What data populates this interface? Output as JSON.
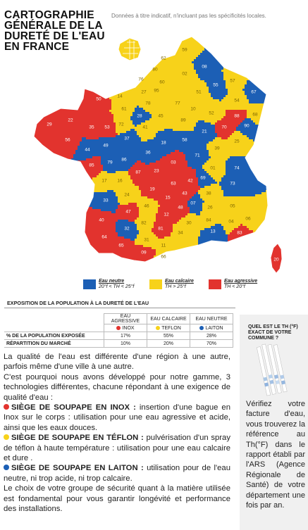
{
  "header": {
    "title_lines": [
      "CARTOGRAPHIE",
      "GÉNÉRALE DE LA",
      "DURETÉ DE L'EAU",
      "EN FRANCE"
    ],
    "note": "Données à titre indicatif, n'incluant pas les spécificités locales."
  },
  "colors": {
    "red": "#e2332e",
    "yellow": "#f7d21a",
    "blue": "#1c5fb5"
  },
  "map": {
    "departments": [
      {
        "n": "62",
        "c": "yellow"
      },
      {
        "n": "59",
        "c": "yellow"
      },
      {
        "n": "80",
        "c": "yellow"
      },
      {
        "n": "02",
        "c": "yellow"
      },
      {
        "n": "08",
        "c": "blue"
      },
      {
        "n": "76",
        "c": "yellow"
      },
      {
        "n": "60",
        "c": "yellow"
      },
      {
        "n": "55",
        "c": "blue"
      },
      {
        "n": "57",
        "c": "yellow"
      },
      {
        "n": "67",
        "c": "blue"
      },
      {
        "n": "14",
        "c": "yellow"
      },
      {
        "n": "27",
        "c": "yellow"
      },
      {
        "n": "95",
        "c": "yellow"
      },
      {
        "n": "51",
        "c": "yellow"
      },
      {
        "n": "54",
        "c": "yellow"
      },
      {
        "n": "50",
        "c": "red"
      },
      {
        "n": "61",
        "c": "yellow"
      },
      {
        "n": "78",
        "c": "yellow"
      },
      {
        "n": "77",
        "c": "yellow"
      },
      {
        "n": "10",
        "c": "yellow"
      },
      {
        "n": "52",
        "c": "yellow"
      },
      {
        "n": "88",
        "c": "red"
      },
      {
        "n": "68",
        "c": "yellow"
      },
      {
        "n": "29",
        "c": "red"
      },
      {
        "n": "22",
        "c": "red"
      },
      {
        "n": "35",
        "c": "red"
      },
      {
        "n": "53",
        "c": "red"
      },
      {
        "n": "72",
        "c": "yellow"
      },
      {
        "n": "28",
        "c": "blue"
      },
      {
        "n": "45",
        "c": "yellow"
      },
      {
        "n": "89",
        "c": "yellow"
      },
      {
        "n": "21",
        "c": "blue"
      },
      {
        "n": "70",
        "c": "red"
      },
      {
        "n": "90",
        "c": "blue"
      },
      {
        "n": "56",
        "c": "red"
      },
      {
        "n": "44",
        "c": "blue"
      },
      {
        "n": "49",
        "c": "blue"
      },
      {
        "n": "37",
        "c": "blue"
      },
      {
        "n": "41",
        "c": "yellow"
      },
      {
        "n": "18",
        "c": "blue"
      },
      {
        "n": "58",
        "c": "blue"
      },
      {
        "n": "71",
        "c": "blue"
      },
      {
        "n": "39",
        "c": "yellow"
      },
      {
        "n": "25",
        "c": "yellow"
      },
      {
        "n": "85",
        "c": "red"
      },
      {
        "n": "79",
        "c": "blue"
      },
      {
        "n": "86",
        "c": "blue"
      },
      {
        "n": "36",
        "c": "blue"
      },
      {
        "n": "03",
        "c": "red"
      },
      {
        "n": "01",
        "c": "yellow"
      },
      {
        "n": "74",
        "c": "blue"
      },
      {
        "n": "17",
        "c": "yellow"
      },
      {
        "n": "16",
        "c": "yellow"
      },
      {
        "n": "87",
        "c": "red"
      },
      {
        "n": "23",
        "c": "red"
      },
      {
        "n": "63",
        "c": "red"
      },
      {
        "n": "42",
        "c": "red"
      },
      {
        "n": "69",
        "c": "blue"
      },
      {
        "n": "73",
        "c": "blue"
      },
      {
        "n": "24",
        "c": "yellow"
      },
      {
        "n": "19",
        "c": "red"
      },
      {
        "n": "15",
        "c": "red"
      },
      {
        "n": "43",
        "c": "red"
      },
      {
        "n": "38",
        "c": "yellow"
      },
      {
        "n": "33",
        "c": "blue"
      },
      {
        "n": "46",
        "c": "yellow"
      },
      {
        "n": "12",
        "c": "red"
      },
      {
        "n": "48",
        "c": "red"
      },
      {
        "n": "07",
        "c": "blue"
      },
      {
        "n": "26",
        "c": "yellow"
      },
      {
        "n": "05",
        "c": "yellow"
      },
      {
        "n": "40",
        "c": "red"
      },
      {
        "n": "47",
        "c": "red"
      },
      {
        "n": "82",
        "c": "yellow"
      },
      {
        "n": "81",
        "c": "red"
      },
      {
        "n": "30",
        "c": "yellow"
      },
      {
        "n": "84",
        "c": "yellow"
      },
      {
        "n": "04",
        "c": "yellow"
      },
      {
        "n": "06",
        "c": "yellow"
      },
      {
        "n": "64",
        "c": "red"
      },
      {
        "n": "32",
        "c": "blue"
      },
      {
        "n": "31",
        "c": "yellow"
      },
      {
        "n": "34",
        "c": "yellow"
      },
      {
        "n": "13",
        "c": "blue"
      },
      {
        "n": "83",
        "c": "red"
      },
      {
        "n": "65",
        "c": "red"
      },
      {
        "n": "09",
        "c": "red"
      },
      {
        "n": "11",
        "c": "yellow"
      },
      {
        "n": "66",
        "c": "yellow"
      },
      {
        "n": "20",
        "c": "red"
      }
    ]
  },
  "legend": [
    {
      "color": "blue",
      "name": "Eau neutre",
      "range": "20°f < TH < 25°f"
    },
    {
      "color": "yellow",
      "name": "Eau calcaire",
      "range": "TH > 25°f"
    },
    {
      "color": "red",
      "name": "Eau agressive",
      "range": "TH < 20°f"
    }
  ],
  "exposition": {
    "title": "EXPOSITION DE LA POPULATION À LA DURETÉ DE L'EAU",
    "col_headers": [
      "EAU AGRESSIVE",
      "EAU CALCAIRE",
      "EAU NEUTRE"
    ],
    "materials": [
      {
        "label": "INOX",
        "color": "red"
      },
      {
        "label": "TEFLON",
        "color": "yellow"
      },
      {
        "label": "LAITON",
        "color": "blue"
      }
    ],
    "rows": [
      {
        "label": "% DE LA POPULATION EXPOSÉE",
        "values": [
          "17%",
          "55%",
          "28%"
        ]
      },
      {
        "label": "RÉPARTITION DU MARCHÉ",
        "values": [
          "10%",
          "20%",
          "70%"
        ]
      }
    ]
  },
  "body": {
    "p1": "La qualité de l'eau est différente d'une région à une autre, parfois même d'une ville à une autre.",
    "p2": "C'est pourquoi nous avons développé pour notre gamme, 3 technologies différentes, chacune répondant à une exigence de qualité d'eau :",
    "inox_title": "SIÈGE DE SOUPAPE EN INOX :",
    "inox_text": " insertion d'une bague en Inox sur le corps : utilisation pour une eau agressive et acide, ainsi que les eaux douces.",
    "teflon_title": "SIÈGE DE SOUPAPE EN TÉFLON :",
    "teflon_text": " pulvérisation d'un spray de téflon à haute température : utilisation pour une eau calcaire et dure .",
    "laiton_title": "SIÈGE DE SOUPAPE EN LAITON :",
    "laiton_text": " utilisation pour de l'eau neutre, ni trop acide, ni trop calcaire.",
    "p_final": "Le choix de votre groupe de sécurité quant à la matière utilisée est fondamental pour vous garantir longévité et performance des installations."
  },
  "sidebar": {
    "question": "QUEL EST LE TH (°F) EXACT DE VOTRE COMMUNE ?",
    "text": "Vérifiez votre facture d'eau, vous trouverez la référence au Th(°F) dans le rapport établi par l'ARS (Agence Régionale de Santé) de votre département une fois par an."
  }
}
